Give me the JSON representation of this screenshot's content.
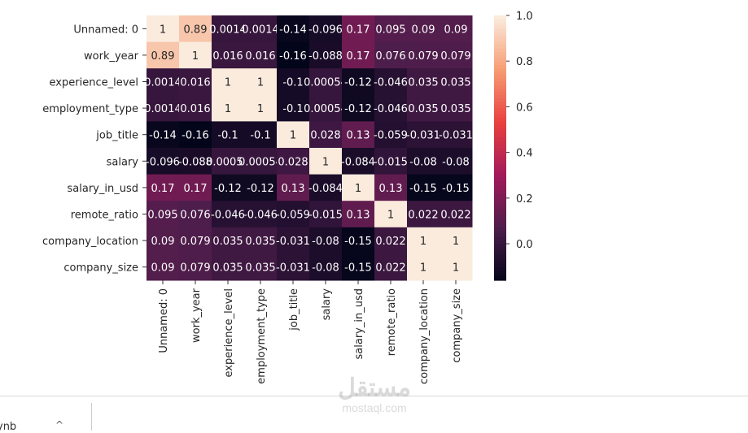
{
  "chart_data": {
    "type": "heatmap",
    "title": "",
    "row_labels": [
      "Unnamed: 0",
      "work_year",
      "experience_level",
      "employment_type",
      "job_title",
      "salary",
      "salary_in_usd",
      "remote_ratio",
      "company_location",
      "company_size"
    ],
    "col_labels": [
      "Unnamed: 0",
      "work_year",
      "experience_level",
      "employment_type",
      "job_title",
      "salary",
      "salary_in_usd",
      "remote_ratio",
      "company_location",
      "company_size"
    ],
    "values": [
      [
        1,
        0.89,
        0.0014,
        0.0014,
        -0.14,
        -0.096,
        0.17,
        0.095,
        0.09,
        0.09
      ],
      [
        0.89,
        1,
        0.016,
        0.016,
        -0.16,
        -0.088,
        0.17,
        0.076,
        0.079,
        0.079
      ],
      [
        0.0014,
        0.016,
        1,
        1,
        -0.1,
        0.00054,
        -0.12,
        -0.046,
        0.035,
        0.035
      ],
      [
        0.0014,
        0.016,
        1,
        1,
        -0.1,
        0.00054,
        -0.12,
        -0.046,
        0.035,
        0.035
      ],
      [
        -0.14,
        -0.16,
        -0.1,
        -0.1,
        1,
        0.028,
        0.13,
        -0.059,
        -0.031,
        -0.031
      ],
      [
        -0.096,
        -0.088,
        0.00054,
        0.00054,
        0.028,
        1,
        -0.084,
        -0.015,
        -0.08,
        -0.08
      ],
      [
        0.17,
        0.17,
        -0.12,
        -0.12,
        0.13,
        -0.084,
        1,
        0.13,
        -0.15,
        -0.15
      ],
      [
        0.095,
        0.076,
        -0.046,
        -0.046,
        -0.059,
        -0.015,
        0.13,
        1,
        0.022,
        0.022
      ],
      [
        0.09,
        0.079,
        0.035,
        0.035,
        -0.031,
        -0.08,
        -0.15,
        0.022,
        1,
        1
      ],
      [
        0.09,
        0.079,
        0.035,
        0.035,
        -0.031,
        -0.08,
        -0.15,
        0.022,
        1,
        1
      ]
    ],
    "annotate": true,
    "colormap": "rocket",
    "colormap_stops": [
      "#03051A",
      "#4C1D4B",
      "#A11A5B",
      "#E83F3F",
      "#F69C73",
      "#FAEBDD"
    ],
    "vmin": -0.16,
    "vmax": 1.0,
    "colorbar_ticks": [
      "0.0",
      "0.2",
      "0.4",
      "0.6",
      "0.8",
      "1.0"
    ]
  },
  "footer": {
    "text": "ynb",
    "caret": "^"
  },
  "watermark": {
    "logo": "مستقل",
    "url": "mostaql.com"
  }
}
